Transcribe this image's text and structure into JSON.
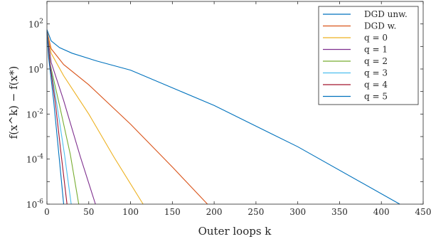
{
  "chart_data": {
    "type": "line",
    "title": "",
    "xlabel": "Outer loops k",
    "ylabel": "f(x^k) − f(x*)",
    "xlim": [
      0,
      450
    ],
    "ylim_log10": [
      -6,
      3
    ],
    "y_scale": "log",
    "grid": false,
    "legend_position": "top-right",
    "x_ticks": [
      "0",
      "50",
      "100",
      "150",
      "200",
      "250",
      "300",
      "350",
      "400",
      "450"
    ],
    "y_ticks": [
      {
        "base": "10",
        "exp": "2"
      },
      {
        "base": "10",
        "exp": "0"
      },
      {
        "base": "10",
        "exp": "-2"
      },
      {
        "base": "10",
        "exp": "-4"
      },
      {
        "base": "10",
        "exp": "-6"
      }
    ],
    "series": [
      {
        "name": "DGD unw.",
        "color": "#0072BD",
        "x": [
          0,
          5,
          15,
          30,
          60,
          100,
          200,
          300,
          422
        ],
        "log10_y": [
          1.75,
          1.25,
          0.95,
          0.7,
          0.35,
          -0.05,
          -1.62,
          -3.45,
          -6.0
        ]
      },
      {
        "name": "DGD w.",
        "color": "#D95319",
        "x": [
          0,
          5,
          20,
          50,
          100,
          150,
          192
        ],
        "log10_y": [
          1.7,
          0.9,
          0.2,
          -0.7,
          -2.45,
          -4.35,
          -6.0
        ]
      },
      {
        "name": "q = 0",
        "color": "#EDB120",
        "x": [
          0,
          5,
          20,
          50,
          80,
          115
        ],
        "log10_y": [
          1.7,
          0.7,
          -0.3,
          -2.0,
          -3.9,
          -6.0
        ]
      },
      {
        "name": "q = 1",
        "color": "#7E2F8E",
        "x": [
          0,
          5,
          20,
          40,
          58
        ],
        "log10_y": [
          1.7,
          0.3,
          -1.4,
          -3.9,
          -6.0
        ]
      },
      {
        "name": "q = 2",
        "color": "#77AC30",
        "x": [
          0,
          4,
          15,
          28,
          38
        ],
        "log10_y": [
          1.7,
          0.2,
          -1.6,
          -3.8,
          -6.0
        ]
      },
      {
        "name": "q = 3",
        "color": "#4DBEEE",
        "x": [
          0,
          3,
          12,
          21,
          29
        ],
        "log10_y": [
          1.7,
          0.4,
          -1.6,
          -3.8,
          -6.0
        ]
      },
      {
        "name": "q = 4",
        "color": "#A2142F",
        "x": [
          0,
          3,
          10,
          17,
          24
        ],
        "log10_y": [
          1.7,
          0.4,
          -1.5,
          -3.8,
          -6.0
        ]
      },
      {
        "name": "q = 5",
        "color": "#0072BD",
        "x": [
          0,
          2,
          8,
          14,
          20
        ],
        "log10_y": [
          1.7,
          0.5,
          -1.4,
          -3.7,
          -6.0
        ]
      }
    ]
  }
}
